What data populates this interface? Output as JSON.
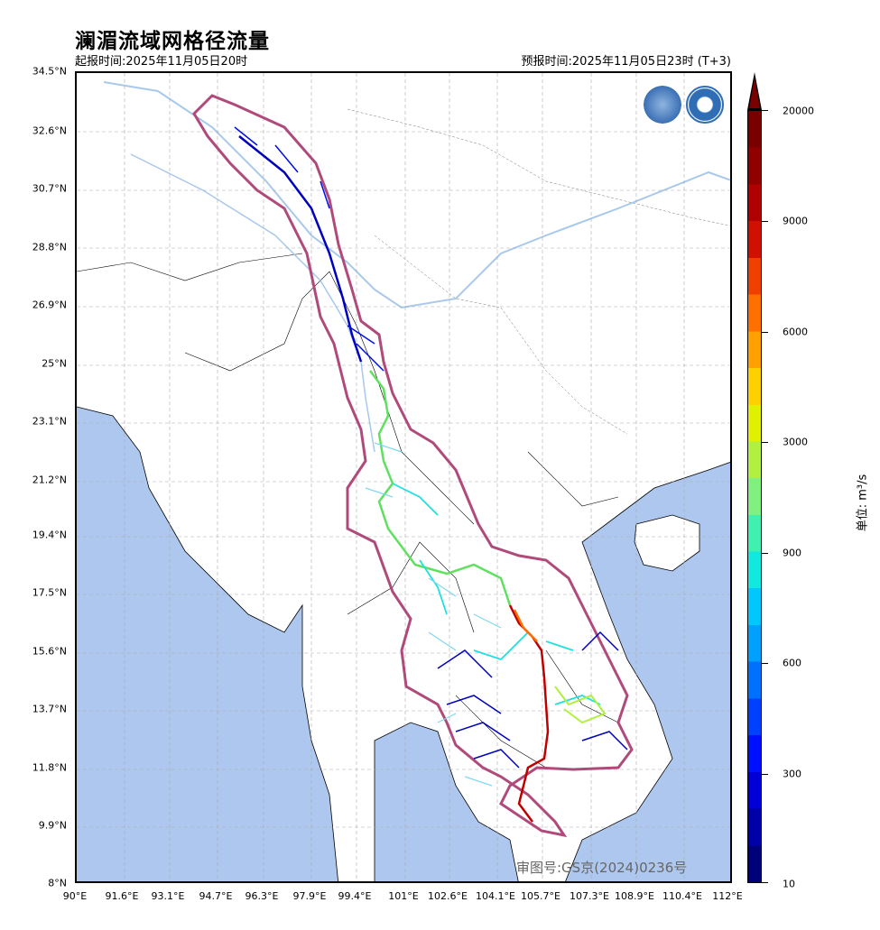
{
  "title": "澜湄流域网格径流量",
  "issue_time": "起报时间:2025年11月05日20时",
  "valid_time": "预报时间:2025年11月05日23时 (T+3)",
  "approval_no": "审图号:GS京(2024)0236号",
  "colorbar": {
    "unit_label": "单位: m³/s",
    "tick_labels": [
      "20000",
      "9000",
      "6000",
      "3000",
      "900",
      "600",
      "300",
      "10"
    ],
    "colors": [
      "#00007a",
      "#0000a8",
      "#0000d6",
      "#0010ff",
      "#0040ff",
      "#0070ff",
      "#00a0ff",
      "#00c8ff",
      "#10e8e0",
      "#40f0b0",
      "#80f080",
      "#b0f040",
      "#e0f000",
      "#ffd000",
      "#ffa000",
      "#ff7000",
      "#f04000",
      "#d01000",
      "#b00000",
      "#900000",
      "#7a0000"
    ]
  },
  "map": {
    "y_ticks": [
      "34.5°N",
      "32.6°N",
      "30.7°N",
      "28.8°N",
      "26.9°N",
      "25°N",
      "23.1°N",
      "21.2°N",
      "19.4°N",
      "17.5°N",
      "15.6°N",
      "13.7°N",
      "11.8°N",
      "9.9°N",
      "8°N"
    ],
    "x_ticks": [
      "90°E",
      "91.6°E",
      "93.1°E",
      "94.7°E",
      "96.3°E",
      "97.9°E",
      "99.4°E",
      "101°E",
      "102.6°E",
      "104.1°E",
      "105.7°E",
      "107.3°E",
      "108.9°E",
      "110.4°E",
      "112°E"
    ],
    "colors": {
      "sea": "#aec7ee",
      "land": "#ffffff",
      "basin_outline": "#b04a7a",
      "grid": "#aaaaaa",
      "river_blue": "#a8c8ec"
    }
  }
}
